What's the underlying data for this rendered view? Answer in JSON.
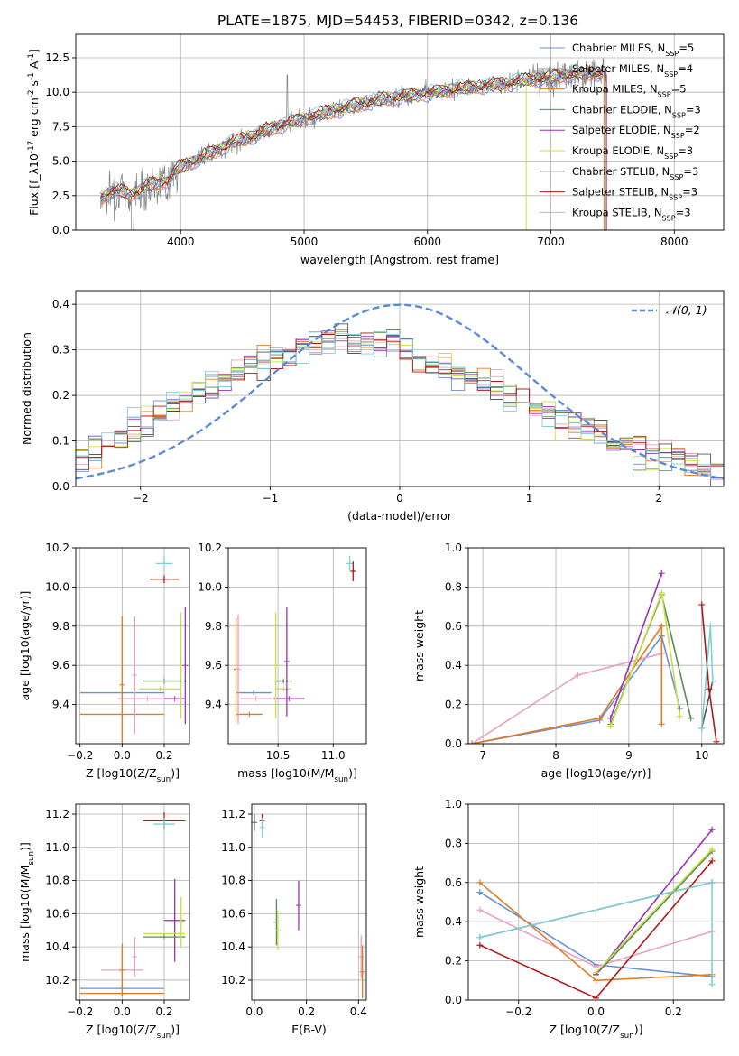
{
  "title": "PLATE=1875, MJD=54453, FIBERID=0342, z=0.136",
  "colors": {
    "chabrier_miles": "#6b8fd6",
    "salpeter_miles": "#e6a0c4",
    "kroupa_miles": "#e07b22",
    "chabrier_elodie": "#5a8a5a",
    "salpeter_elodie": "#9b34b0",
    "kroupa_elodie": "#c8e040",
    "chabrier_stelib": "#555555",
    "salpeter_stelib": "#b01818",
    "kroupa_stelib": "#7fd0d8",
    "data_spectrum": "#808080",
    "normal_curve": "#5b8bd6"
  },
  "chart_data": [
    {
      "id": "spectrum",
      "type": "line",
      "xlabel": "wavelength [Angstrom, rest frame]",
      "ylabel": "Flux [f_λ10^-17 erg cm^-2 s^-1 A^-1]",
      "xlim": [
        3150,
        8400
      ],
      "ylim": [
        0,
        14.2
      ],
      "xticks": [
        4000,
        5000,
        6000,
        7000,
        8000
      ],
      "yticks": [
        0.0,
        2.5,
        5.0,
        7.5,
        10.0,
        12.5
      ],
      "legend_position": "right",
      "legend": [
        "Chabrier MILES, N_SSP=5",
        "Salpeter MILES, N_SSP=4",
        "Kroupa MILES, N_SSP=5",
        "Chabrier ELODIE, N_SSP=3",
        "Salpeter ELODIE, N_SSP=2",
        "Kroupa ELODIE, N_SSP=3",
        "Chabrier STELIB, N_SSP=3",
        "Salpeter STELIB, N_SSP=3",
        "Kroupa STELIB, N_SSP=3"
      ],
      "continuum": {
        "x": [
          3350,
          3450,
          3600,
          3700,
          3800,
          3900,
          3950,
          4050,
          4200,
          4400,
          4600,
          4800,
          5000,
          5200,
          5400,
          5600,
          5800,
          6000,
          6200,
          6400,
          6600,
          6800,
          7000,
          7200,
          7400
        ],
        "y": [
          2.3,
          2.9,
          2.6,
          3.1,
          3.4,
          3.6,
          4.3,
          4.8,
          5.4,
          6.3,
          6.9,
          7.6,
          8.1,
          8.6,
          9.0,
          9.4,
          9.7,
          9.9,
          10.2,
          10.4,
          10.6,
          10.9,
          11.1,
          11.3,
          11.4
        ]
      }
    },
    {
      "id": "residual_hist",
      "type": "line",
      "xlabel": "(data-model)/error",
      "ylabel": "Normed distribution",
      "xlim": [
        -2.5,
        2.5
      ],
      "ylim": [
        0,
        0.43
      ],
      "xticks": [
        -2,
        -1,
        0,
        1,
        2
      ],
      "yticks": [
        0.0,
        0.1,
        0.2,
        0.3,
        0.4
      ],
      "legend": [
        "N(0,1)"
      ],
      "legend_position": "top-right",
      "bin_width": 0.1,
      "envelope": {
        "x": [
          -2.5,
          -2.0,
          -1.5,
          -1.0,
          -0.5,
          0.0,
          0.5,
          1.0,
          1.5,
          2.0,
          2.5
        ],
        "y": [
          0.06,
          0.13,
          0.22,
          0.28,
          0.32,
          0.31,
          0.24,
          0.18,
          0.12,
          0.07,
          0.03
        ]
      }
    },
    {
      "id": "age_vs_Z",
      "type": "scatter",
      "xlabel": "Z [log10(Z/Z_sun)]",
      "ylabel": "age [log10(age/yr)]",
      "xlim": [
        -0.22,
        0.32
      ],
      "ylim": [
        9.2,
        10.2
      ],
      "xticks": [
        -0.2,
        0.0,
        0.2
      ],
      "yticks": [
        9.4,
        9.6,
        9.8,
        10.0,
        10.2
      ],
      "points": [
        {
          "series": "kroupa_stelib",
          "x": 0.2,
          "y": 10.12,
          "xerr": 0.04,
          "yerr": 0.04
        },
        {
          "series": "salpeter_stelib",
          "x": 0.2,
          "y": 10.04,
          "xerr": 0.07,
          "yerr": 0.02
        },
        {
          "series": "chabrier_elodie",
          "x": 0.2,
          "y": 9.52,
          "xerr": 0.1,
          "yerr": 0.0
        },
        {
          "series": "kroupa_elodie",
          "x": 0.18,
          "y": 9.48,
          "xerr": 0.1,
          "yerr": 0.0
        },
        {
          "series": "chabrier_miles",
          "x": 0.0,
          "y": 9.46,
          "xerr": 0.2,
          "yerr": 0.0
        },
        {
          "series": "salpeter_miles",
          "x": 0.12,
          "y": 9.43,
          "xerr": 0.14,
          "yerr": 0.0
        },
        {
          "series": "salpeter_elodie",
          "x": 0.25,
          "y": 9.43,
          "xerr": 0.05,
          "yerr": 0.0
        },
        {
          "series": "kroupa_miles",
          "x": 0.0,
          "y": 9.35,
          "xerr": 0.2,
          "yerr": 0.0
        },
        {
          "series": "kroupa_miles",
          "x": 0.0,
          "y": 9.5,
          "xerr": 0.0,
          "yerr": 0.35
        },
        {
          "series": "salpeter_miles",
          "x": 0.06,
          "y": 9.55,
          "xerr": 0.0,
          "yerr": 0.3
        },
        {
          "series": "kroupa_elodie",
          "x": 0.28,
          "y": 9.6,
          "xerr": 0.0,
          "yerr": 0.27
        },
        {
          "series": "salpeter_elodie",
          "x": 0.3,
          "y": 9.6,
          "xerr": 0.0,
          "yerr": 0.3
        }
      ]
    },
    {
      "id": "age_vs_mass",
      "type": "scatter",
      "xlabel": "mass [log10(M/M_sun)]",
      "ylabel": "",
      "xlim": [
        10.05,
        11.3
      ],
      "ylim": [
        9.2,
        10.2
      ],
      "xticks": [
        10.5,
        11.0
      ],
      "yticks": [
        9.4,
        9.6,
        9.8,
        10.0,
        10.2
      ],
      "points": [
        {
          "series": "kroupa_stelib",
          "x": 11.15,
          "y": 10.12,
          "xerr": 0.03,
          "yerr": 0.04
        },
        {
          "series": "salpeter_stelib",
          "x": 11.18,
          "y": 10.08,
          "xerr": 0.02,
          "yerr": 0.05
        },
        {
          "series": "chabrier_elodie",
          "x": 10.55,
          "y": 9.52,
          "xerr": 0.08,
          "yerr": 0.0
        },
        {
          "series": "kroupa_elodie",
          "x": 10.55,
          "y": 9.48,
          "xerr": 0.07,
          "yerr": 0.0
        },
        {
          "series": "chabrier_miles",
          "x": 10.28,
          "y": 9.46,
          "xerr": 0.16,
          "yerr": 0.0
        },
        {
          "series": "salpeter_elodie",
          "x": 10.6,
          "y": 9.43,
          "xerr": 0.14,
          "yerr": 0.0
        },
        {
          "series": "salpeter_miles",
          "x": 10.3,
          "y": 9.43,
          "xerr": 0.14,
          "yerr": 0.0
        },
        {
          "series": "kroupa_miles",
          "x": 10.24,
          "y": 9.35,
          "xerr": 0.12,
          "yerr": 0.0
        },
        {
          "series": "kroupa_miles",
          "x": 10.12,
          "y": 9.58,
          "xerr": 0.0,
          "yerr": 0.26
        },
        {
          "series": "salpeter_miles",
          "x": 10.14,
          "y": 9.58,
          "xerr": 0.0,
          "yerr": 0.28
        },
        {
          "series": "kroupa_elodie",
          "x": 10.48,
          "y": 9.6,
          "xerr": 0.0,
          "yerr": 0.27
        },
        {
          "series": "salpeter_elodie",
          "x": 10.58,
          "y": 9.62,
          "xerr": 0.0,
          "yerr": 0.28
        }
      ]
    },
    {
      "id": "weight_vs_age",
      "type": "line",
      "xlabel": "age [log10(age/yr)]",
      "ylabel": "mass weight",
      "xlim": [
        6.8,
        10.3
      ],
      "ylim": [
        0,
        1.0
      ],
      "xticks": [
        7,
        8,
        9,
        10
      ],
      "yticks": [
        0.0,
        0.2,
        0.4,
        0.6,
        0.8,
        1.0
      ],
      "series": [
        {
          "key": "chabrier_miles",
          "x": [
            6.85,
            8.6,
            9.45,
            9.7
          ],
          "y": [
            0.0,
            0.12,
            0.55,
            0.18
          ]
        },
        {
          "key": "salpeter_miles",
          "x": [
            6.85,
            8.3,
            9.45
          ],
          "y": [
            0.0,
            0.35,
            0.46
          ]
        },
        {
          "key": "kroupa_miles",
          "x": [
            6.85,
            8.6,
            9.45,
            9.45
          ],
          "y": [
            0.0,
            0.13,
            0.6,
            0.1
          ]
        },
        {
          "key": "chabrier_elodie",
          "x": [
            8.75,
            9.45,
            9.85
          ],
          "y": [
            0.1,
            0.76,
            0.13
          ]
        },
        {
          "key": "salpeter_elodie",
          "x": [
            8.75,
            9.45
          ],
          "y": [
            0.13,
            0.87
          ]
        },
        {
          "key": "kroupa_elodie",
          "x": [
            8.75,
            9.45,
            9.7
          ],
          "y": [
            0.09,
            0.77,
            0.14
          ]
        },
        {
          "key": "chabrier_stelib",
          "x": [
            10.0,
            10.15
          ],
          "y": [
            0.08,
            0.32
          ]
        },
        {
          "key": "salpeter_stelib",
          "x": [
            10.0,
            10.1,
            10.2
          ],
          "y": [
            0.71,
            0.28,
            0.01
          ]
        },
        {
          "key": "kroupa_stelib",
          "x": [
            10.0,
            10.12,
            10.15
          ],
          "y": [
            0.08,
            0.6,
            0.32
          ]
        }
      ]
    },
    {
      "id": "mass_vs_Z",
      "type": "scatter",
      "xlabel": "Z [log10(Z/Z_sun)]",
      "ylabel": "mass [log10(M/M_sun)]",
      "xlim": [
        -0.22,
        0.32
      ],
      "ylim": [
        10.08,
        11.26
      ],
      "xticks": [
        -0.2,
        0.0,
        0.2
      ],
      "yticks": [
        10.2,
        10.4,
        10.6,
        10.8,
        11.0,
        11.2
      ],
      "points": [
        {
          "series": "salpeter_stelib",
          "x": 0.2,
          "y": 11.16,
          "xerr": 0.1,
          "yerr": 0.05
        },
        {
          "series": "kroupa_stelib",
          "x": 0.2,
          "y": 11.14,
          "xerr": 0.05,
          "yerr": 0.04
        },
        {
          "series": "salpeter_elodie",
          "x": 0.25,
          "y": 10.56,
          "xerr": 0.05,
          "yerr": 0.25
        },
        {
          "series": "kroupa_elodie",
          "x": 0.2,
          "y": 10.48,
          "xerr": 0.1,
          "yerr": 0.0
        },
        {
          "series": "chabrier_elodie",
          "x": 0.2,
          "y": 10.46,
          "xerr": 0.1,
          "yerr": 0.0
        },
        {
          "series": "kroupa_elodie",
          "x": 0.28,
          "y": 10.55,
          "xerr": 0.0,
          "yerr": 0.15
        },
        {
          "series": "salpeter_miles",
          "x": 0.06,
          "y": 10.34,
          "xerr": 0.0,
          "yerr": 0.12
        },
        {
          "series": "salpeter_miles",
          "x": 0.0,
          "y": 10.26,
          "xerr": 0.1,
          "yerr": 0.0
        },
        {
          "series": "chabrier_miles",
          "x": 0.0,
          "y": 10.15,
          "xerr": 0.2,
          "yerr": 0.0
        },
        {
          "series": "kroupa_miles",
          "x": 0.0,
          "y": 10.12,
          "xerr": 0.2,
          "yerr": 0.0
        },
        {
          "series": "kroupa_miles",
          "x": 0.0,
          "y": 10.26,
          "xerr": 0.0,
          "yerr": 0.16
        }
      ]
    },
    {
      "id": "mass_vs_ebv",
      "type": "scatter",
      "xlabel": "E(B-V)",
      "ylabel": "",
      "xlim": [
        -0.01,
        0.43
      ],
      "ylim": [
        10.08,
        11.26
      ],
      "xticks": [
        0.0,
        0.2,
        0.4
      ],
      "yticks": [
        10.2,
        10.4,
        10.6,
        10.8,
        11.0,
        11.2
      ],
      "points": [
        {
          "series": "salpeter_stelib",
          "x": 0.03,
          "y": 11.16,
          "xerr": 0.0,
          "yerr": 0.04
        },
        {
          "series": "kroupa_stelib",
          "x": 0.03,
          "y": 11.12,
          "xerr": 0.0,
          "yerr": 0.06
        },
        {
          "series": "chabrier_stelib",
          "x": 0.0,
          "y": 11.15,
          "xerr": 0.0,
          "yerr": 0.05
        },
        {
          "series": "salpeter_elodie",
          "x": 0.17,
          "y": 10.65,
          "xerr": 0.0,
          "yerr": 0.15
        },
        {
          "series": "chabrier_elodie",
          "x": 0.085,
          "y": 10.55,
          "xerr": 0.0,
          "yerr": 0.14
        },
        {
          "series": "kroupa_elodie",
          "x": 0.09,
          "y": 10.5,
          "xerr": 0.0,
          "yerr": 0.12
        },
        {
          "series": "salpeter_miles",
          "x": 0.41,
          "y": 10.34,
          "xerr": 0.0,
          "yerr": 0.13
        },
        {
          "series": "kroupa_miles",
          "x": 0.415,
          "y": 10.25,
          "xerr": 0.0,
          "yerr": 0.16
        }
      ]
    },
    {
      "id": "weight_vs_Z",
      "type": "line",
      "xlabel": "Z [log10(Z/Z_sun)]",
      "ylabel": "mass weight",
      "xlim": [
        -0.33,
        0.33
      ],
      "ylim": [
        0,
        1.0
      ],
      "xticks": [
        -0.2,
        0.0,
        0.2
      ],
      "yticks": [
        0.0,
        0.2,
        0.4,
        0.6,
        0.8,
        1.0
      ],
      "series": [
        {
          "key": "chabrier_miles",
          "x": [
            -0.3,
            0.0,
            0.3
          ],
          "y": [
            0.55,
            0.18,
            0.12
          ]
        },
        {
          "key": "salpeter_miles",
          "x": [
            -0.3,
            0.0,
            0.3
          ],
          "y": [
            0.46,
            0.17,
            0.35
          ]
        },
        {
          "key": "kroupa_miles",
          "x": [
            -0.3,
            0.0,
            0.3
          ],
          "y": [
            0.6,
            0.1,
            0.13
          ]
        },
        {
          "key": "chabrier_elodie",
          "x": [
            0.0,
            0.3
          ],
          "y": [
            0.13,
            0.76
          ]
        },
        {
          "key": "salpeter_elodie",
          "x": [
            0.0,
            0.3
          ],
          "y": [
            0.13,
            0.87
          ]
        },
        {
          "key": "kroupa_elodie",
          "x": [
            0.0,
            0.3
          ],
          "y": [
            0.14,
            0.77
          ]
        },
        {
          "key": "chabrier_stelib",
          "x": [
            -0.3,
            0.3
          ],
          "y": [
            0.32,
            0.6
          ]
        },
        {
          "key": "salpeter_stelib",
          "x": [
            -0.3,
            0.0,
            0.3
          ],
          "y": [
            0.28,
            0.01,
            0.71
          ]
        },
        {
          "key": "kroupa_stelib",
          "x": [
            -0.3,
            0.3,
            0.3
          ],
          "y": [
            0.32,
            0.6,
            0.08
          ]
        }
      ]
    }
  ]
}
